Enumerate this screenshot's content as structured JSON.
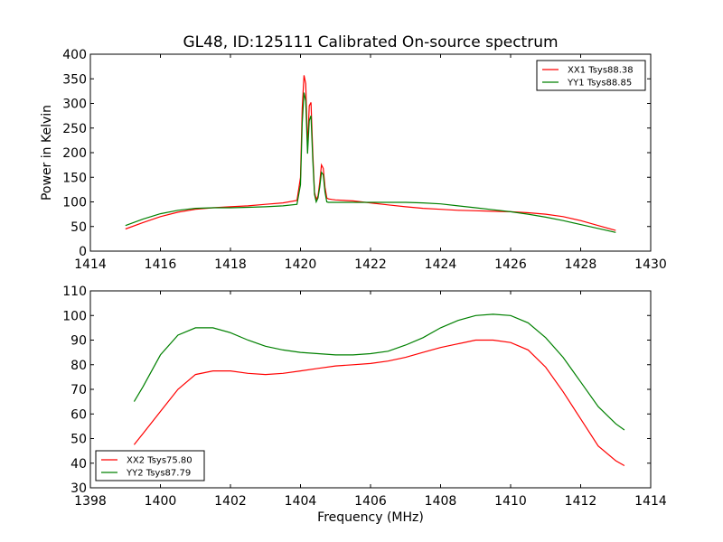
{
  "chart_data": [
    {
      "type": "line",
      "title": "GL48, ID:125111 Calibrated On-source spectrum",
      "xlabel": "",
      "ylabel": "Power in Kelvin",
      "xlim": [
        1414,
        1430
      ],
      "ylim": [
        0,
        400
      ],
      "xticks": [
        1414,
        1416,
        1418,
        1420,
        1422,
        1424,
        1426,
        1428,
        1430
      ],
      "yticks": [
        0,
        50,
        100,
        150,
        200,
        250,
        300,
        350,
        400
      ],
      "legend_position": "top-right",
      "series": [
        {
          "name": "XX1 Tsys88.38",
          "color": "#ff0000",
          "x": [
            1415.0,
            1415.5,
            1416.0,
            1416.5,
            1417.0,
            1417.5,
            1418.0,
            1418.5,
            1419.0,
            1419.5,
            1419.9,
            1420.0,
            1420.05,
            1420.1,
            1420.15,
            1420.2,
            1420.25,
            1420.3,
            1420.35,
            1420.4,
            1420.45,
            1420.5,
            1420.55,
            1420.6,
            1420.65,
            1420.7,
            1420.75,
            1420.8,
            1420.9,
            1421.0,
            1421.5,
            1422.0,
            1422.5,
            1423.0,
            1423.5,
            1424.0,
            1424.5,
            1425.0,
            1425.5,
            1426.0,
            1426.5,
            1427.0,
            1427.5,
            1428.0,
            1428.5,
            1429.0
          ],
          "y": [
            45,
            58,
            70,
            79,
            85,
            88,
            90,
            92,
            95,
            98,
            103,
            150,
            290,
            357,
            340,
            210,
            295,
            302,
            200,
            120,
            105,
            112,
            140,
            175,
            168,
            130,
            108,
            106,
            105,
            104,
            102,
            98,
            94,
            90,
            87,
            85,
            83,
            82,
            81,
            80,
            78,
            75,
            70,
            62,
            52,
            42
          ]
        },
        {
          "name": "YY1 Tsys88.85",
          "color": "#008000",
          "x": [
            1415.0,
            1415.5,
            1416.0,
            1416.5,
            1417.0,
            1417.5,
            1418.0,
            1418.5,
            1419.0,
            1419.5,
            1419.9,
            1420.0,
            1420.05,
            1420.1,
            1420.15,
            1420.2,
            1420.25,
            1420.3,
            1420.35,
            1420.4,
            1420.45,
            1420.5,
            1420.55,
            1420.6,
            1420.65,
            1420.7,
            1420.75,
            1420.8,
            1420.9,
            1421.0,
            1421.5,
            1422.0,
            1422.5,
            1423.0,
            1423.5,
            1424.0,
            1424.5,
            1425.0,
            1425.5,
            1426.0,
            1426.5,
            1427.0,
            1427.5,
            1428.0,
            1428.5,
            1429.0
          ],
          "y": [
            52,
            65,
            76,
            83,
            87,
            88,
            88,
            89,
            90,
            92,
            95,
            135,
            260,
            322,
            305,
            198,
            265,
            275,
            185,
            115,
            100,
            108,
            130,
            160,
            155,
            120,
            100,
            99,
            99,
            99,
            99,
            99,
            99,
            99,
            98,
            96,
            92,
            88,
            84,
            80,
            75,
            69,
            62,
            54,
            46,
            38
          ]
        }
      ]
    },
    {
      "type": "line",
      "title": "",
      "xlabel": "Frequency (MHz)",
      "ylabel": "",
      "xlim": [
        1398,
        1414
      ],
      "ylim": [
        30,
        110
      ],
      "xticks": [
        1398,
        1400,
        1402,
        1404,
        1406,
        1408,
        1410,
        1412,
        1414
      ],
      "yticks": [
        30,
        40,
        50,
        60,
        70,
        80,
        90,
        100,
        110
      ],
      "legend_position": "bottom-left",
      "series": [
        {
          "name": "XX2 Tsys75.80",
          "color": "#ff0000",
          "x": [
            1399.25,
            1399.5,
            1400.0,
            1400.5,
            1401.0,
            1401.5,
            1402.0,
            1402.5,
            1403.0,
            1403.5,
            1404.0,
            1404.5,
            1405.0,
            1405.5,
            1406.0,
            1406.5,
            1407.0,
            1407.5,
            1408.0,
            1408.5,
            1409.0,
            1409.5,
            1410.0,
            1410.5,
            1411.0,
            1411.5,
            1412.0,
            1412.5,
            1413.0,
            1413.25
          ],
          "y": [
            47.5,
            52,
            61,
            70,
            76,
            77.5,
            77.5,
            76.5,
            76,
            76.5,
            77.5,
            78.5,
            79.5,
            80,
            80.5,
            81.5,
            83,
            85,
            87,
            88.5,
            90,
            90,
            89,
            86,
            79,
            69,
            58,
            47,
            41,
            39
          ]
        },
        {
          "name": "YY2 Tsys87.79",
          "color": "#008000",
          "x": [
            1399.25,
            1399.5,
            1400.0,
            1400.5,
            1401.0,
            1401.5,
            1402.0,
            1402.5,
            1403.0,
            1403.5,
            1404.0,
            1404.5,
            1405.0,
            1405.5,
            1406.0,
            1406.5,
            1407.0,
            1407.5,
            1408.0,
            1408.5,
            1409.0,
            1409.5,
            1410.0,
            1410.5,
            1411.0,
            1411.5,
            1412.0,
            1412.5,
            1413.0,
            1413.25
          ],
          "y": [
            65,
            71,
            84,
            92,
            95,
            95,
            93,
            90,
            87.5,
            86,
            85,
            84.5,
            84,
            84,
            84.5,
            85.5,
            88,
            91,
            95,
            98,
            100,
            100.5,
            100,
            97,
            91,
            83,
            73,
            63,
            56,
            53.5
          ]
        }
      ]
    }
  ]
}
